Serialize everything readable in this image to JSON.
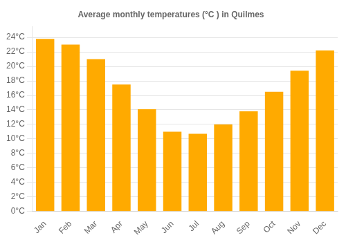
{
  "chart_data": {
    "type": "bar",
    "title": "Average monthly temperatures (°C ) in Quilmes",
    "categories": [
      "Jan",
      "Feb",
      "Mar",
      "Apr",
      "May",
      "Jun",
      "Jul",
      "Aug",
      "Sep",
      "Oct",
      "Nov",
      "Dec"
    ],
    "values": [
      23.8,
      23.0,
      21.0,
      17.5,
      14.1,
      11.0,
      10.7,
      12.0,
      13.8,
      16.5,
      19.4,
      22.2
    ],
    "color": "#FFAA00",
    "ylim": [
      0,
      25.5
    ],
    "yticks": [
      {
        "value": 0,
        "label": "0°C"
      },
      {
        "value": 2,
        "label": "2°C"
      },
      {
        "value": 4,
        "label": "4°C"
      },
      {
        "value": 6,
        "label": "6°C"
      },
      {
        "value": 8,
        "label": "8°C"
      },
      {
        "value": 10,
        "label": "10°C"
      },
      {
        "value": 12,
        "label": "12°C"
      },
      {
        "value": 14,
        "label": "14°C"
      },
      {
        "value": 16,
        "label": "16°C"
      },
      {
        "value": 18,
        "label": "18°C"
      },
      {
        "value": 20,
        "label": "20°C"
      },
      {
        "value": 22,
        "label": "22°C"
      },
      {
        "value": 24,
        "label": "24°C"
      }
    ],
    "grid": true
  }
}
